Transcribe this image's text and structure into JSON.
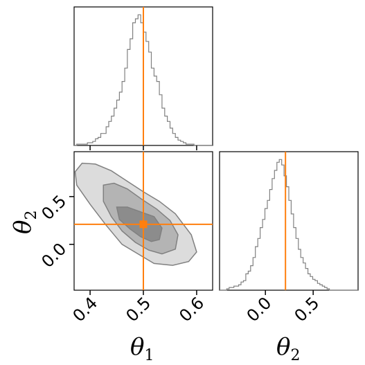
{
  "chart_data": {
    "type": "corner",
    "parameters": [
      "θ1",
      "θ2"
    ],
    "truths": {
      "theta1": 0.5,
      "theta2": 0.21
    },
    "truth_color": "#ff7f0e",
    "hist_color": "#808080",
    "axes": {
      "theta1": {
        "range": [
          0.37,
          0.63
        ],
        "ticks": [
          0.4,
          0.5,
          0.6
        ],
        "tick_labels": [
          "0.4",
          "0.5",
          "0.6"
        ]
      },
      "theta2": {
        "range": [
          -0.48,
          0.97
        ],
        "ticks": [
          0.0,
          0.5
        ],
        "tick_labels": [
          "0.0",
          "0.5"
        ]
      }
    },
    "labels": {
      "x_theta1": {
        "base": "θ",
        "sub": "1"
      },
      "x_theta2": {
        "base": "θ",
        "sub": "2"
      },
      "y_theta2": {
        "base": "θ",
        "sub": "2"
      }
    },
    "marginal_theta1": {
      "bin_edges_start": 0.37,
      "bin_width": 0.005,
      "counts": [
        0,
        1,
        1,
        1,
        1,
        2,
        2,
        3,
        5,
        6,
        9,
        9,
        14,
        18,
        22,
        28,
        34,
        40,
        48,
        58,
        72,
        80,
        92,
        95,
        98,
        92,
        85,
        78,
        70,
        58,
        52,
        48,
        38,
        28,
        22,
        18,
        13,
        9,
        6,
        4,
        3,
        2,
        1,
        1,
        1,
        0,
        0,
        0,
        0,
        0,
        0,
        0
      ]
    },
    "marginal_theta2": {
      "bin_edges_start": -0.48,
      "bin_width": 0.025,
      "counts": [
        0,
        0,
        0,
        1,
        2,
        2,
        3,
        3,
        4,
        6,
        7,
        12,
        14,
        18,
        24,
        32,
        38,
        46,
        52,
        60,
        66,
        74,
        82,
        88,
        94,
        96,
        92,
        84,
        76,
        66,
        56,
        46,
        38,
        30,
        24,
        20,
        16,
        12,
        10,
        8,
        7,
        5,
        4,
        3,
        2,
        1,
        0,
        0,
        0,
        0,
        0,
        0,
        0,
        0,
        0,
        0,
        0,
        0
      ]
    },
    "contours": {
      "outer": [
        [
          0.385,
          0.85
        ],
        [
          0.41,
          0.84
        ],
        [
          0.44,
          0.77
        ],
        [
          0.47,
          0.66
        ],
        [
          0.5,
          0.55
        ],
        [
          0.53,
          0.45
        ],
        [
          0.56,
          0.32
        ],
        [
          0.59,
          0.1
        ],
        [
          0.6,
          -0.08
        ],
        [
          0.585,
          -0.18
        ],
        [
          0.555,
          -0.22
        ],
        [
          0.52,
          -0.2
        ],
        [
          0.49,
          -0.1
        ],
        [
          0.46,
          0.0
        ],
        [
          0.43,
          0.2
        ],
        [
          0.4,
          0.42
        ],
        [
          0.375,
          0.62
        ],
        [
          0.372,
          0.76
        ]
      ],
      "middle": [
        [
          0.425,
          0.62
        ],
        [
          0.445,
          0.64
        ],
        [
          0.47,
          0.58
        ],
        [
          0.5,
          0.46
        ],
        [
          0.525,
          0.37
        ],
        [
          0.55,
          0.25
        ],
        [
          0.565,
          0.1
        ],
        [
          0.56,
          -0.05
        ],
        [
          0.535,
          -0.1
        ],
        [
          0.51,
          -0.06
        ],
        [
          0.485,
          0.02
        ],
        [
          0.46,
          0.14
        ],
        [
          0.44,
          0.29
        ],
        [
          0.425,
          0.45
        ]
      ],
      "inner": [
        [
          0.45,
          0.39
        ],
        [
          0.47,
          0.39
        ],
        [
          0.495,
          0.34
        ],
        [
          0.52,
          0.29
        ],
        [
          0.535,
          0.17
        ],
        [
          0.53,
          0.05
        ],
        [
          0.515,
          0.03
        ],
        [
          0.495,
          0.08
        ],
        [
          0.475,
          0.16
        ],
        [
          0.455,
          0.26
        ]
      ],
      "fills": [
        "#dcdcdc",
        "#b4b4b4",
        "#8c8c8c"
      ]
    }
  }
}
